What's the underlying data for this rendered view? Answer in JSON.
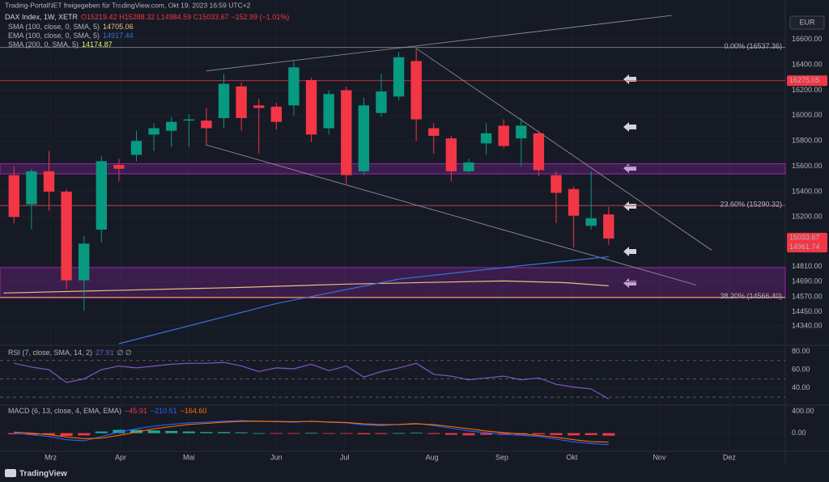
{
  "header": "Trading-PortalNET freigegeben für TradingView.com, Okt 19, 2023 16:59 UTC+2",
  "footer": "TradingView",
  "currency": "EUR",
  "chart_data": [
    {
      "type": "candlestick",
      "title": "DAX Index, 1W, XETR",
      "subtitle": "O15219.42 H15288.32 L14984.59 C15033.67 −152.99 (−1.01%)",
      "up_color": "#089981",
      "down_color": "#f23645",
      "x": [
        0,
        1,
        2,
        3,
        4,
        5,
        6,
        7,
        8,
        9,
        10,
        11,
        12,
        13,
        14,
        15,
        16,
        17,
        18,
        19,
        20,
        21,
        22,
        23,
        24,
        25,
        26,
        27,
        28,
        29,
        30,
        31,
        32,
        33,
        34
      ],
      "open": [
        15530,
        15300,
        15560,
        15400,
        14700,
        15100,
        15610,
        15690,
        15850,
        15880,
        15960,
        15960,
        15980,
        16230,
        16080,
        16070,
        16080,
        16280,
        15900,
        16200,
        15560,
        16020,
        16150,
        16430,
        15900,
        15820,
        15560,
        15780,
        15920,
        15820,
        15860,
        15530,
        15420,
        15130,
        15220
      ],
      "high": [
        15600,
        15580,
        15720,
        15420,
        15050,
        15680,
        15660,
        15880,
        15940,
        15990,
        16010,
        16060,
        16330,
        16260,
        16130,
        16100,
        16430,
        16300,
        16200,
        16230,
        16140,
        16330,
        16500,
        16530,
        15940,
        15840,
        15660,
        15940,
        15970,
        15980,
        15880,
        15560,
        15440,
        15560,
        15280
      ],
      "low": [
        15150,
        15100,
        15250,
        14630,
        14460,
        15000,
        15480,
        15640,
        15720,
        15750,
        15750,
        15760,
        15900,
        15880,
        15700,
        15890,
        16000,
        15790,
        15850,
        15460,
        15530,
        15990,
        16120,
        15800,
        15700,
        15480,
        15550,
        15690,
        15740,
        15600,
        15520,
        15150,
        14960,
        15100,
        14980
      ],
      "close": [
        15200,
        15560,
        15400,
        14700,
        14990,
        15640,
        15580,
        15800,
        15900,
        15950,
        15970,
        15900,
        16250,
        15980,
        16060,
        15950,
        16380,
        15850,
        16170,
        15530,
        16080,
        16190,
        16460,
        15970,
        15840,
        15560,
        15630,
        15860,
        15760,
        15920,
        15570,
        15390,
        15210,
        15190,
        15030
      ],
      "xlim": [
        -0.8,
        44.1
      ],
      "xticks": [
        {
          "value": 2.1,
          "label": "Mrz"
        },
        {
          "value": 6.1,
          "label": "Apr"
        },
        {
          "value": 10,
          "label": "Mai"
        },
        {
          "value": 15,
          "label": "Jun"
        },
        {
          "value": 18.9,
          "label": "Jul"
        },
        {
          "value": 23.9,
          "label": "Aug"
        },
        {
          "value": 27.9,
          "label": "Sep"
        },
        {
          "value": 31.9,
          "label": "Okt"
        },
        {
          "value": 36.9,
          "label": "Nov"
        },
        {
          "value": 40.9,
          "label": "Dez"
        }
      ],
      "ylim": [
        14200,
        16835
      ],
      "yticks": [
        {
          "value": 16600,
          "label": "16600.00"
        },
        {
          "value": 16400,
          "label": "16400.00"
        },
        {
          "value": 16200,
          "label": "16200.00"
        },
        {
          "value": 16000,
          "label": "16000.00"
        },
        {
          "value": 15800,
          "label": "15800.00"
        },
        {
          "value": 15600,
          "label": "15600.00"
        },
        {
          "value": 15400,
          "label": "15400.00"
        },
        {
          "value": 15200,
          "label": "15200.00"
        },
        {
          "value": 14810,
          "label": "14810.00"
        },
        {
          "value": 14690,
          "label": "14690.00"
        },
        {
          "value": 14570,
          "label": "14570.00"
        },
        {
          "value": 14450,
          "label": "14450.00"
        },
        {
          "value": 14340,
          "label": "14340.00"
        }
      ],
      "series": [
        {
          "name": "SMA (100, close, 0, SMA, 5)",
          "last_label": "14705.06",
          "color": "#e6c07b",
          "x": [
            -0.6,
            13,
            19,
            28,
            31.5,
            34
          ],
          "values": [
            14600,
            14644,
            14670,
            14695,
            14682,
            14657
          ]
        },
        {
          "name": "EMA (100, close, 0, SMA, 5)",
          "last_label": "14917.44",
          "color": "#3a6fd8",
          "x": [
            6,
            15,
            22,
            29,
            34
          ],
          "values": [
            14200,
            14517,
            14710,
            14816,
            14886
          ]
        },
        {
          "name": "SMA (200, 0, SMA, 5)",
          "last_label": "14174.87",
          "color": "#e8f060",
          "x": [],
          "values": []
        }
      ],
      "zones": [
        {
          "from": 15540,
          "to": 15620
        },
        {
          "from": 14560,
          "to": 14800
        }
      ],
      "fib_levels": [
        {
          "value": 16537.36,
          "label": "0.00% (16537.36)",
          "color": "#787b86"
        },
        {
          "value": 15290.32,
          "label": "23.60% (15290.32)",
          "color": "#b2454f"
        },
        {
          "value": 14566.4,
          "label": "38.20% (14566.40)",
          "color": "#d4a020"
        }
      ],
      "trendlines": [
        {
          "x": [
            11,
            37.6
          ],
          "values": [
            16352,
            16790
          ]
        },
        {
          "x": [
            11,
            39
          ],
          "values": [
            15768,
            14663
          ]
        },
        {
          "x": [
            23,
            39.9
          ],
          "values": [
            16530,
            14937
          ]
        }
      ],
      "hlines": [
        {
          "value": 16275.05,
          "color": "#f23645"
        }
      ],
      "price_tags": [
        {
          "value": 16275.05,
          "label": "16275.05",
          "color": "#f23645"
        },
        {
          "value": 15033.67,
          "label": "15033.67",
          "color": "#f23645"
        },
        {
          "value": 14961.74,
          "label": "14961.74",
          "color": "#f23645"
        }
      ]
    },
    {
      "type": "line",
      "title": "RSI (7, close, SMA, 14, 2)",
      "value_label": "27.91",
      "extra": "∅ ∅",
      "color": "#7e57c2",
      "x": [
        0,
        1,
        2,
        3,
        4,
        5,
        6,
        7,
        8,
        9,
        10,
        11,
        12,
        13,
        14,
        15,
        16,
        17,
        18,
        19,
        20,
        21,
        22,
        23,
        24,
        25,
        26,
        27,
        28,
        29,
        30,
        31,
        32,
        33,
        34
      ],
      "values": [
        67,
        63,
        60,
        46,
        50,
        60,
        64,
        62,
        64,
        66,
        67,
        67,
        68,
        64,
        58,
        62,
        61,
        66,
        59,
        64,
        52,
        58,
        62,
        67,
        55,
        53,
        49,
        51,
        53,
        49,
        51,
        44,
        41,
        39,
        27.91
      ],
      "xlim": [
        -0.8,
        44.1
      ],
      "ylim": [
        23,
        84
      ],
      "levels": [
        70,
        50,
        30
      ],
      "yticks": [
        {
          "value": 80,
          "label": "80.00"
        },
        {
          "value": 60,
          "label": "60.00"
        },
        {
          "value": 40,
          "label": "40.00"
        }
      ]
    },
    {
      "type": "macd",
      "title": "MACD (6, 13, close, 4, EMA, EMA)",
      "x": [
        0,
        1,
        2,
        3,
        4,
        5,
        6,
        7,
        8,
        9,
        10,
        11,
        12,
        13,
        14,
        15,
        16,
        17,
        18,
        19,
        20,
        21,
        22,
        23,
        24,
        25,
        26,
        27,
        28,
        29,
        30,
        31,
        32,
        33,
        34
      ],
      "xlim": [
        -0.8,
        44.1
      ],
      "ylim": [
        -317,
        483
      ],
      "yticks": [
        {
          "value": 400,
          "label": "400.00"
        },
        {
          "value": 0,
          "label": "0.00"
        }
      ],
      "up_color": "#26a69a",
      "down_color": "#f23645",
      "series": [
        {
          "name": "Histogram",
          "kind": "bar",
          "last_label": "−45.91",
          "color": "#f23645",
          "values": [
            -20,
            -30,
            -30,
            -50,
            -40,
            30,
            60,
            60,
            50,
            40,
            30,
            20,
            20,
            15,
            0,
            -5,
            -10,
            5,
            -5,
            -5,
            -20,
            -15,
            2,
            10,
            -15,
            -30,
            -40,
            -30,
            -30,
            -25,
            -20,
            -35,
            -40,
            -35,
            -45.91
          ]
        },
        {
          "name": "MACD",
          "kind": "line",
          "last_label": "−210.51",
          "color": "#2962ff",
          "values": [
            0,
            -30,
            -60,
            -120,
            -140,
            -60,
            20,
            80,
            130,
            160,
            190,
            200,
            220,
            230,
            220,
            210,
            200,
            220,
            200,
            190,
            150,
            140,
            160,
            180,
            140,
            90,
            40,
            10,
            -20,
            -40,
            -60,
            -110,
            -160,
            -190,
            -210.51
          ]
        },
        {
          "name": "Signal",
          "kind": "line",
          "last_label": "−164.60",
          "color": "#ff6d00",
          "values": [
            20,
            0,
            -30,
            -70,
            -100,
            -90,
            -40,
            20,
            80,
            120,
            160,
            180,
            200,
            215,
            220,
            215,
            210,
            215,
            205,
            195,
            170,
            155,
            158,
            170,
            155,
            120,
            80,
            40,
            10,
            -15,
            -40,
            -75,
            -120,
            -155,
            -164.6
          ]
        }
      ]
    }
  ]
}
